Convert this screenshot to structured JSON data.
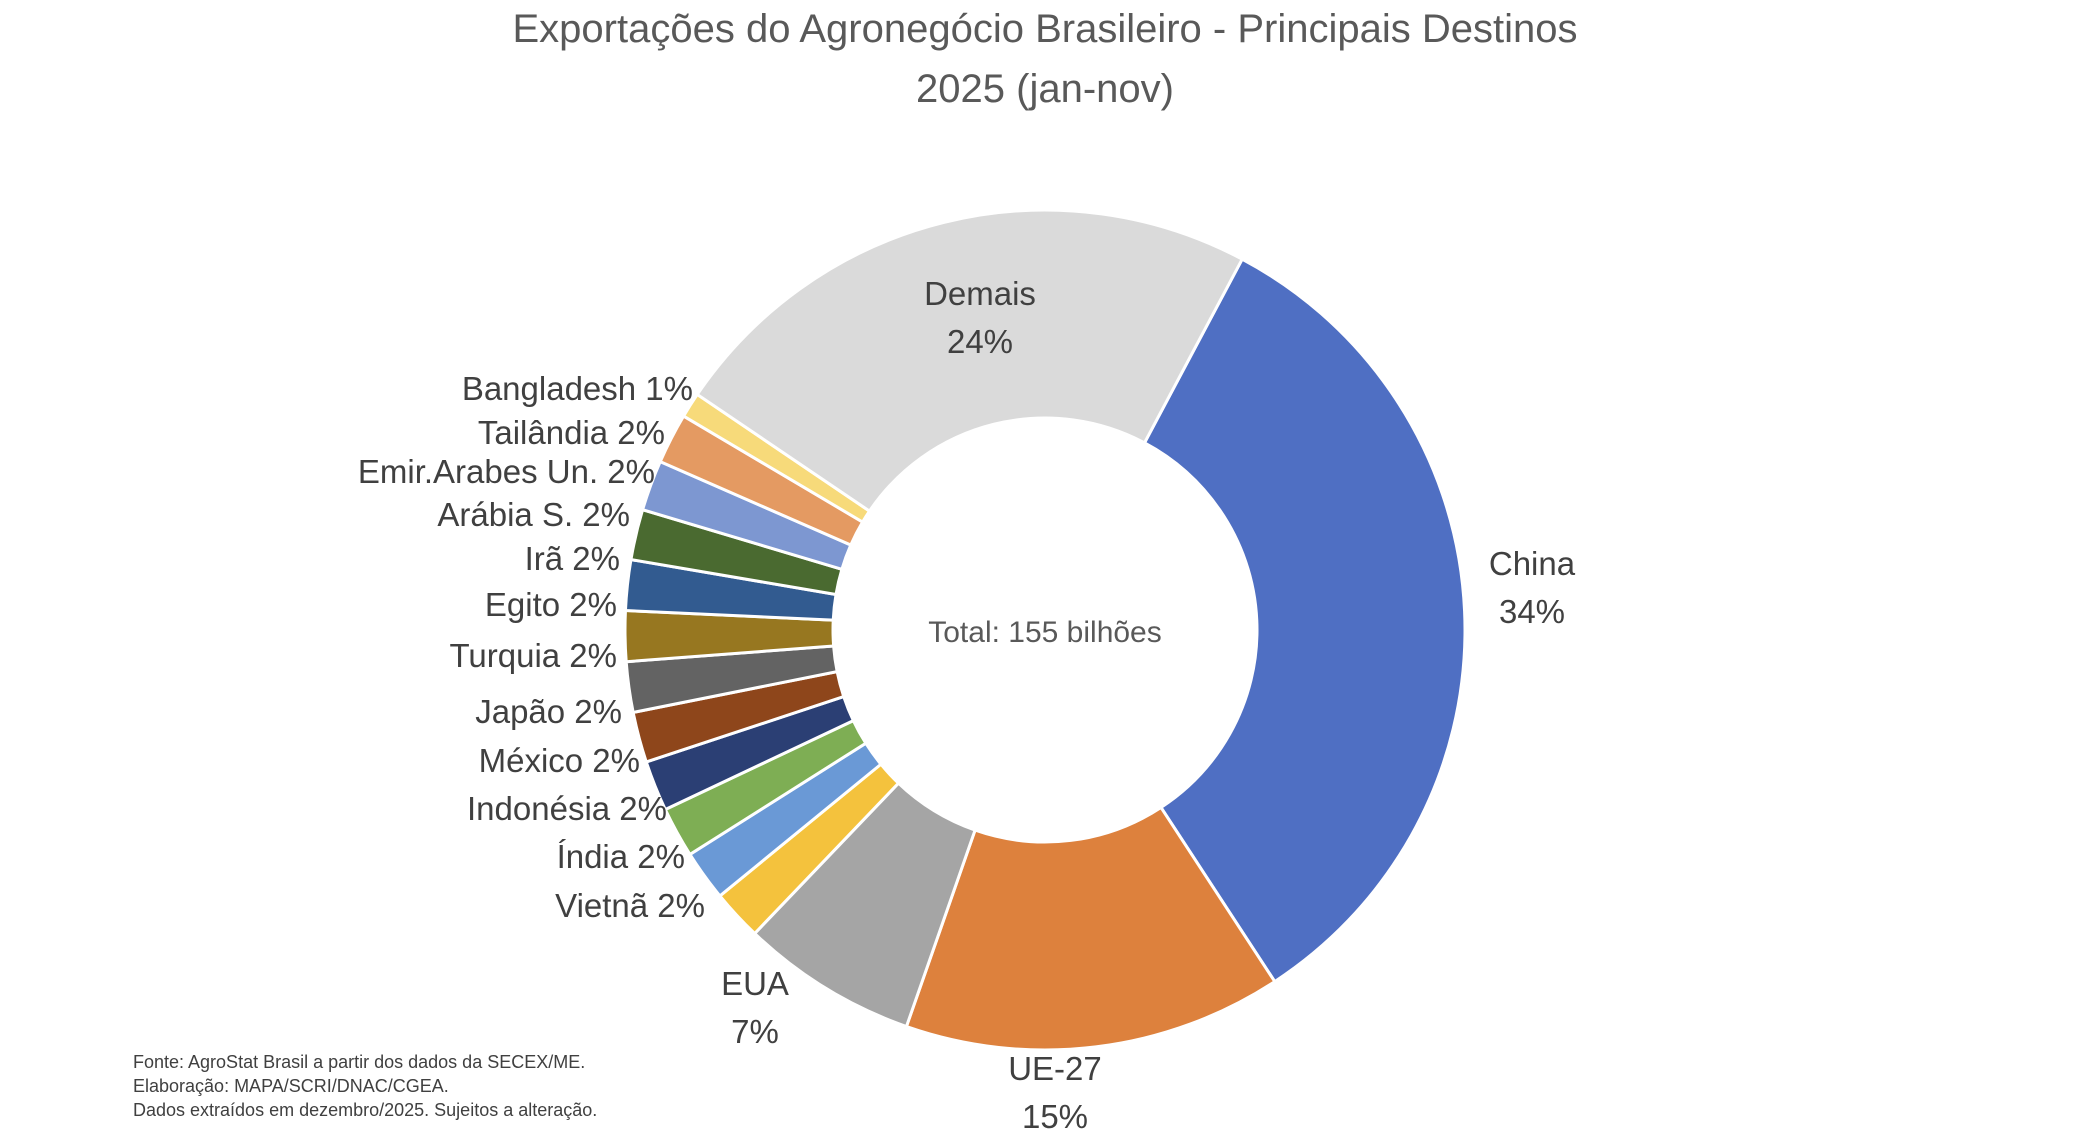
{
  "chart_data": {
    "type": "pie",
    "donut": true,
    "title": "Exportações do Agronegócio Brasileiro - Principais Destinos",
    "subtitle": "2025 (jan-nov)",
    "center_label": "Total: 155 bilhões",
    "unit": "%",
    "slices": [
      {
        "name": "China",
        "value": 34,
        "label": "34%",
        "color": "#4F6FC3"
      },
      {
        "name": "UE-27",
        "value": 15,
        "label": "15%",
        "color": "#DD813D"
      },
      {
        "name": "EUA",
        "value": 7,
        "label": "7%",
        "color": "#A5A5A5"
      },
      {
        "name": "Vietnã",
        "value": 2,
        "label": "2%",
        "color": "#F4C23D"
      },
      {
        "name": "Índia",
        "value": 2,
        "label": "2%",
        "color": "#6A99D6"
      },
      {
        "name": "Indonésia",
        "value": 2,
        "label": "2%",
        "color": "#7EAE54"
      },
      {
        "name": "México",
        "value": 2,
        "label": "2%",
        "color": "#2B3F74"
      },
      {
        "name": "Japão",
        "value": 2,
        "label": "2%",
        "color": "#8E461B"
      },
      {
        "name": "Turquia",
        "value": 2,
        "label": "2%",
        "color": "#636363"
      },
      {
        "name": "Egito",
        "value": 2,
        "label": "2%",
        "color": "#977720"
      },
      {
        "name": "Irã",
        "value": 2,
        "label": "2%",
        "color": "#325B90"
      },
      {
        "name": "Arábia S.",
        "value": 2,
        "label": "2%",
        "color": "#4A6A30"
      },
      {
        "name": "Emir.Arabes Un.",
        "value": 2,
        "label": "2%",
        "color": "#7D97D1"
      },
      {
        "name": "Tailândia",
        "value": 2,
        "label": "2%",
        "color": "#E49A62"
      },
      {
        "name": "Bangladesh",
        "value": 1,
        "label": "1%",
        "color": "#F7DA7A"
      },
      {
        "name": "Demais",
        "value": 24,
        "label": "24%",
        "color": "#DADADA"
      }
    ]
  },
  "footnotes": [
    "Fonte: AgroStat Brasil a partir dos dados da SECEX/ME.",
    "Elaboração: MAPA/SCRI/DNAC/CGEA.",
    "Dados extraídos em dezembro/2025. Sujeitos a alteração."
  ]
}
